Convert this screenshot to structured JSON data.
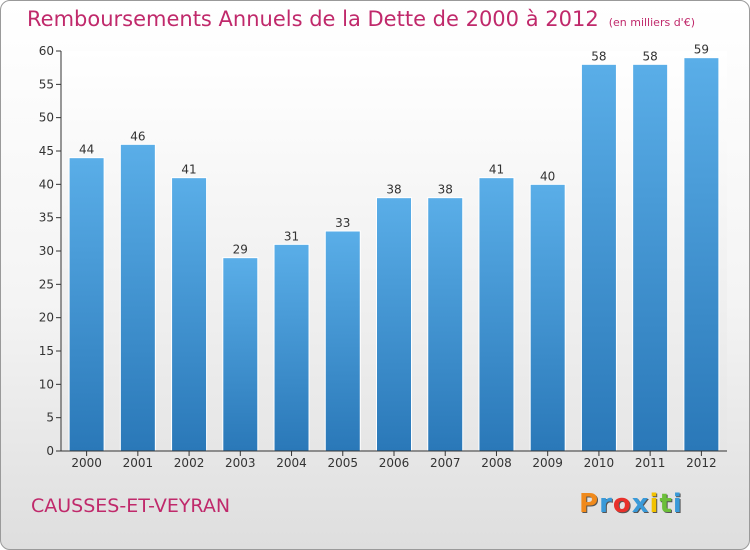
{
  "header": {
    "title": "Remboursements Annuels de la Dette de 2000 à 2012",
    "unit": "(en milliers d'€)"
  },
  "footer": {
    "commune": "CAUSSES-ET-VEYRAN",
    "logo_letters": [
      "P",
      "r",
      "o",
      "x",
      "i",
      "t",
      "i"
    ],
    "logo_colors": [
      "#f08a1c",
      "#3a9ad9",
      "#e8312b",
      "#3a9ad9",
      "#f2c200",
      "#6cbf3a",
      "#3a9ad9"
    ]
  },
  "chart_data": {
    "type": "bar",
    "title": "Remboursements Annuels de la Dette de 2000 à 2012",
    "xlabel": "",
    "ylabel": "",
    "categories": [
      "2000",
      "2001",
      "2002",
      "2003",
      "2004",
      "2005",
      "2006",
      "2007",
      "2008",
      "2009",
      "2010",
      "2011",
      "2012"
    ],
    "values": [
      44,
      46,
      41,
      29,
      31,
      33,
      38,
      38,
      41,
      40,
      58,
      58,
      59
    ],
    "ylim": [
      0,
      60
    ],
    "yticks": [
      0,
      5,
      10,
      15,
      20,
      25,
      30,
      35,
      40,
      45,
      50,
      55,
      60
    ],
    "grid": false,
    "bar_color_top": "#5aaee8",
    "bar_color_bottom": "#2a78b8"
  }
}
